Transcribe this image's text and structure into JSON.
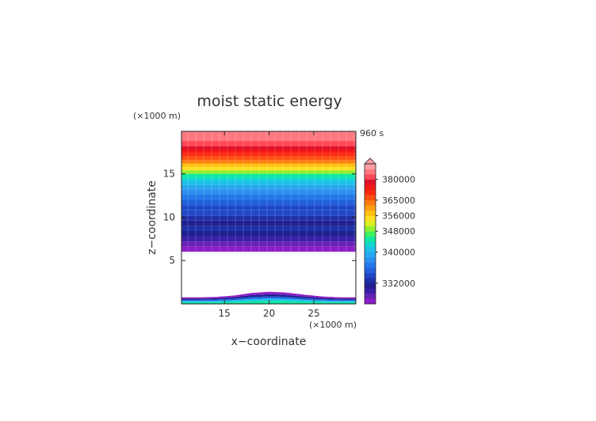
{
  "chart_data": {
    "type": "heatmap",
    "title": "moist static energy",
    "time_label": "960 s",
    "xlabel": "x−coordinate",
    "ylabel": "z−coordinate",
    "x_unit": "(×1000 m)",
    "y_unit": "(×1000 m)",
    "xlim": [
      10.2,
      29.7
    ],
    "ylim": [
      0,
      19.9
    ],
    "x_ticks": [
      "15",
      "20",
      "25"
    ],
    "x_tick_values": [
      15,
      20,
      25
    ],
    "y_ticks": [
      "5",
      "10",
      "15"
    ],
    "y_tick_values": [
      5,
      10,
      15
    ],
    "colorbar_labels": [
      "380000",
      "365000",
      "356000",
      "348000",
      "340000",
      "332000"
    ],
    "colorbar_colors": [
      "#8c1fc8",
      "#6a22b5",
      "#3a1fa8",
      "#1f1f8f",
      "#1e2fa8",
      "#1f48c8",
      "#2060dd",
      "#2478ea",
      "#2a90f0",
      "#28a8f0",
      "#1ec0ea",
      "#10d8d0",
      "#10e8a0",
      "#40f060",
      "#90f030",
      "#d8f020",
      "#ffe020",
      "#ffc010",
      "#ffa010",
      "#ff7a10",
      "#ff5010",
      "#ff2a10",
      "#f01818",
      "#e01028",
      "#ff4a5a",
      "#ff7a80",
      "#ffa0a8"
    ],
    "band_level_index": [
      {
        "z": [
          6.0,
          6.6
        ],
        "level": 0
      },
      {
        "z": [
          6.6,
          7.2
        ],
        "level": 1
      },
      {
        "z": [
          7.2,
          7.8
        ],
        "level": 2
      },
      {
        "z": [
          7.8,
          8.4
        ],
        "level": 3
      },
      {
        "z": [
          8.4,
          9.0
        ],
        "level": 4
      },
      {
        "z": [
          9.0,
          9.6
        ],
        "level": 3
      },
      {
        "z": [
          9.6,
          10.2
        ],
        "level": 4
      },
      {
        "z": [
          10.2,
          10.8
        ],
        "level": 5
      },
      {
        "z": [
          10.8,
          11.4
        ],
        "level": 5
      },
      {
        "z": [
          11.4,
          12.0
        ],
        "level": 6
      },
      {
        "z": [
          12.0,
          12.6
        ],
        "level": 7
      },
      {
        "z": [
          12.6,
          13.2
        ],
        "level": 8
      },
      {
        "z": [
          13.2,
          13.7
        ],
        "level": 9
      },
      {
        "z": [
          13.7,
          14.2
        ],
        "level": 10
      },
      {
        "z": [
          14.2,
          14.6
        ],
        "level": 11
      },
      {
        "z": [
          14.6,
          15.0
        ],
        "level": 12
      },
      {
        "z": [
          15.0,
          15.4
        ],
        "level": 14
      },
      {
        "z": [
          15.4,
          15.8
        ],
        "level": 16
      },
      {
        "z": [
          15.8,
          16.2
        ],
        "level": 17
      },
      {
        "z": [
          16.2,
          16.6
        ],
        "level": 19
      },
      {
        "z": [
          16.6,
          17.0
        ],
        "level": 20
      },
      {
        "z": [
          17.0,
          17.4
        ],
        "level": 21
      },
      {
        "z": [
          17.4,
          17.8
        ],
        "level": 22
      },
      {
        "z": [
          17.8,
          18.2
        ],
        "level": 23
      },
      {
        "z": [
          18.2,
          18.8
        ],
        "level": 24
      },
      {
        "z": [
          18.8,
          19.9
        ],
        "level": 25
      }
    ],
    "empty_layer": {
      "z": [
        0.7,
        6.0
      ]
    },
    "surface_layer": {
      "x": [
        10.2,
        12,
        14,
        16,
        18,
        20,
        22,
        24,
        26,
        28,
        29.7
      ],
      "top": [
        0.75,
        0.75,
        0.8,
        0.95,
        1.25,
        1.4,
        1.3,
        1.05,
        0.85,
        0.75,
        0.75
      ],
      "layers": [
        {
          "frac": [
            0.0,
            0.25
          ],
          "level": 12
        },
        {
          "frac": [
            0.25,
            0.45
          ],
          "level": 10
        },
        {
          "frac": [
            0.45,
            0.62
          ],
          "level": 6
        },
        {
          "frac": [
            0.62,
            0.8
          ],
          "level": 3
        },
        {
          "frac": [
            0.8,
            1.0
          ],
          "level": 0
        }
      ]
    }
  }
}
